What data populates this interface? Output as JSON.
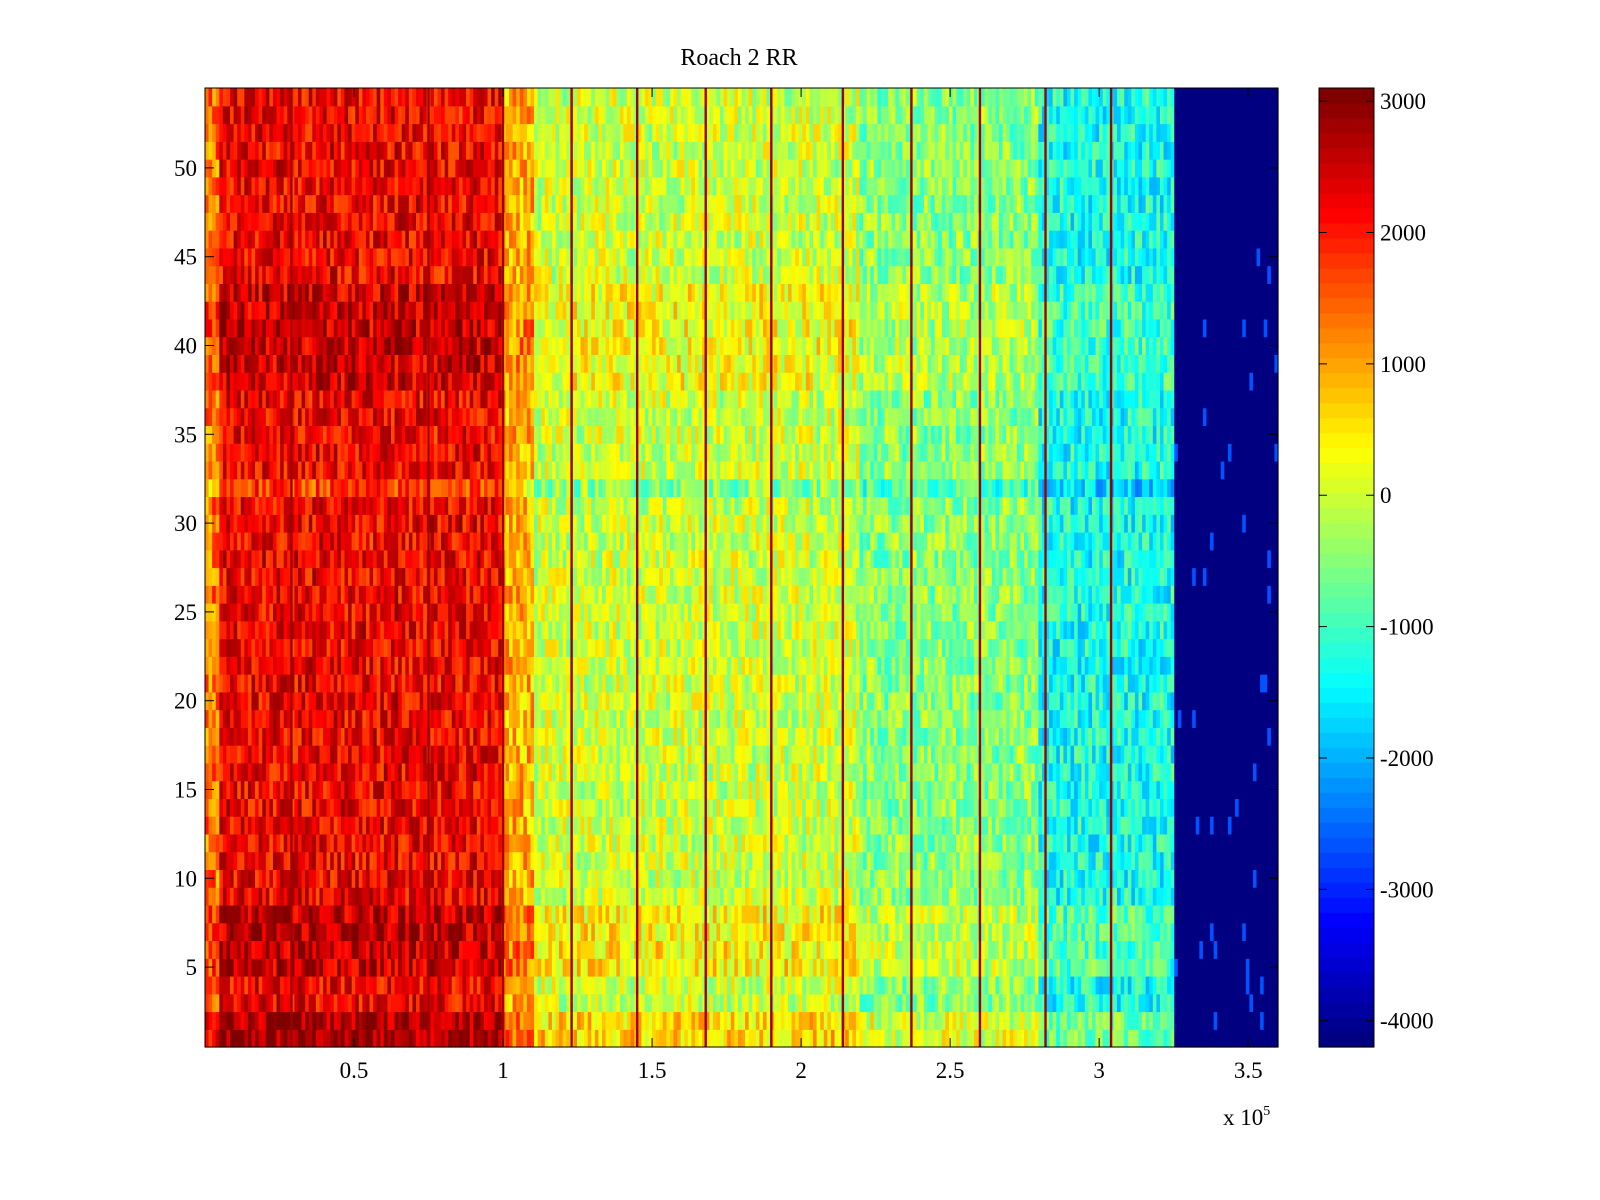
{
  "chart_data": {
    "type": "heatmap",
    "title": "Roach 2 RR",
    "xlabel": "",
    "ylabel": "",
    "x_exponent_label": {
      "base": "x 10",
      "exponent": "5"
    },
    "xlim": [
      0,
      3.6
    ],
    "ylim": [
      0.5,
      54.5
    ],
    "x_ticks": [
      0.5,
      1,
      1.5,
      2,
      2.5,
      3,
      3.5
    ],
    "x_tick_labels": [
      "0.5",
      "1",
      "1.5",
      "2",
      "2.5",
      "3",
      "3.5"
    ],
    "y_ticks": [
      5,
      10,
      15,
      20,
      25,
      30,
      35,
      40,
      45,
      50
    ],
    "y_tick_labels": [
      "5",
      "10",
      "15",
      "20",
      "25",
      "30",
      "35",
      "40",
      "45",
      "50"
    ],
    "rows": 54,
    "colormap": "jet",
    "colorbar": {
      "clim": [
        -4200,
        3100
      ],
      "ticks": [
        3000,
        2000,
        1000,
        0,
        -1000,
        -2000,
        -3000,
        -4000
      ],
      "tick_labels": [
        "3000",
        "2000",
        "1000",
        "0",
        "-1000",
        "-2000",
        "-3000",
        "-4000"
      ],
      "steps": 64
    },
    "column_profile": {
      "x_units": "x 10^5",
      "segments": [
        {
          "x": [
            0.0,
            0.05
          ],
          "value": 1300
        },
        {
          "x": [
            0.05,
            1.0
          ],
          "value": 2200
        },
        {
          "x": [
            1.0,
            1.1
          ],
          "value": 900
        },
        {
          "x": [
            1.1,
            2.2
          ],
          "value": 0
        },
        {
          "x": [
            2.2,
            2.8
          ],
          "value": -500
        },
        {
          "x": [
            2.8,
            3.25
          ],
          "value": -1300
        },
        {
          "x": [
            3.25,
            3.6
          ],
          "value": -4150
        }
      ]
    },
    "vertical_stripes_x": [
      0.29,
      0.75,
      1.0,
      1.23,
      1.45,
      1.68,
      1.9,
      2.14,
      2.37,
      2.6,
      2.82,
      3.04
    ],
    "stripe_value": 2800,
    "row_anomalies": [
      {
        "rows": [
          1,
          2
        ],
        "delta": 600
      },
      {
        "rows": [
          5,
          8
        ],
        "delta": 400
      },
      {
        "rows": [
          32,
          32
        ],
        "delta": -500
      },
      {
        "rows": [
          38,
          43
        ],
        "delta": 300
      }
    ]
  }
}
